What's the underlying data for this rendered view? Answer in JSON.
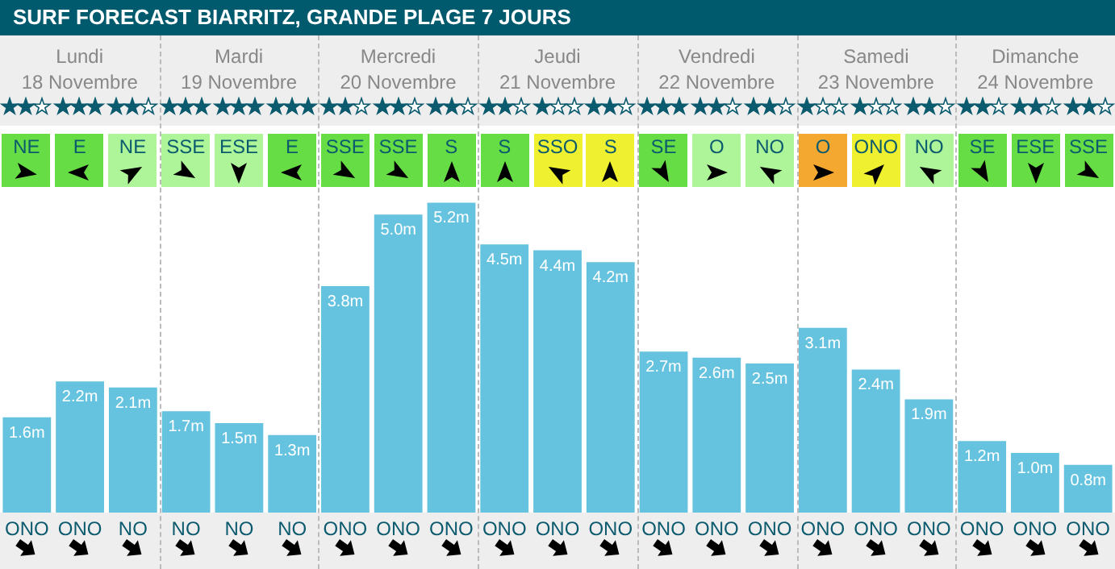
{
  "chart_data": {
    "type": "bar",
    "title": "SURF FORECAST BIARRITZ, GRANDE PLAGE 7 JOURS",
    "categories": [
      "ONO",
      "ONO",
      "NO",
      "NO",
      "NO",
      "NO",
      "ONO",
      "ONO",
      "ONO",
      "ONO",
      "ONO",
      "ONO",
      "ONO",
      "ONO",
      "ONO",
      "ONO",
      "ONO",
      "ONO",
      "ONO",
      "ONO",
      "ONO"
    ],
    "values": [
      1.6,
      2.2,
      2.1,
      1.7,
      1.5,
      1.3,
      3.8,
      5.0,
      5.2,
      4.5,
      4.4,
      4.2,
      2.7,
      2.6,
      2.5,
      3.1,
      2.4,
      1.9,
      1.2,
      1.0,
      0.8
    ],
    "value_labels": [
      "1.6m",
      "2.2m",
      "2.1m",
      "1.7m",
      "1.5m",
      "1.3m",
      "3.8m",
      "5.0m",
      "5.2m",
      "4.5m",
      "4.4m",
      "4.2m",
      "2.7m",
      "2.6m",
      "2.5m",
      "3.1m",
      "2.4m",
      "1.9m",
      "1.2m",
      "1.0m",
      "0.8m"
    ],
    "color": "#66c3df",
    "annotations": [
      "Lundi",
      "18 Novembre",
      "Mardi",
      "19 Novembre",
      "Mercredi",
      "20 Novembre",
      "Jeudi",
      "21 Novembre",
      "Vendredi",
      "22 Novembre",
      "Samedi",
      "23 Novembre",
      "Dimanche",
      "24 Novembre",
      "NE",
      "E",
      "NE",
      "SSE",
      "ESE",
      "E",
      "SSE",
      "SSE",
      "S",
      "S",
      "SSO",
      "S",
      "SE",
      "O",
      "NO",
      "O",
      "ONO",
      "NO",
      "SE",
      "ESE",
      "SSE"
    ]
  }
}
